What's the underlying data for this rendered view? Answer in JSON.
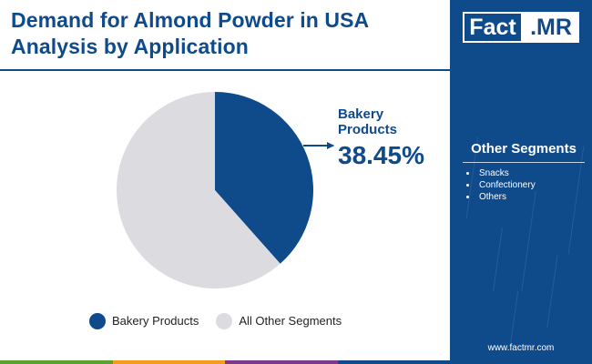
{
  "title_lines": [
    "Demand for Almond Powder in USA",
    "Analysis by Application"
  ],
  "logo": {
    "part1": "Fact",
    "part2": ".MR"
  },
  "chart_data": {
    "type": "pie",
    "slices": [
      {
        "label": "Bakery Products",
        "value": 38.45,
        "color": "#0f4a8a"
      },
      {
        "label": "All Other Segments",
        "value": 61.55,
        "color": "#dcdbdf"
      }
    ],
    "callout": {
      "label": "Bakery Products",
      "value": "38.45%"
    },
    "legend": [
      "Bakery Products",
      "All Other Segments"
    ],
    "legend_placement": "bottom"
  },
  "side_panel": {
    "title": "Other Segments",
    "items": [
      "Snacks",
      "Confectionery",
      "Others"
    ],
    "website": "www.factmr.com"
  },
  "colors": {
    "brand_blue": "#0f4a8a",
    "other_gray": "#dcdbdf",
    "bottom_bar": [
      "#5aa12f",
      "#f39c1f",
      "#7c3a8c",
      "#0f4a8a"
    ]
  }
}
